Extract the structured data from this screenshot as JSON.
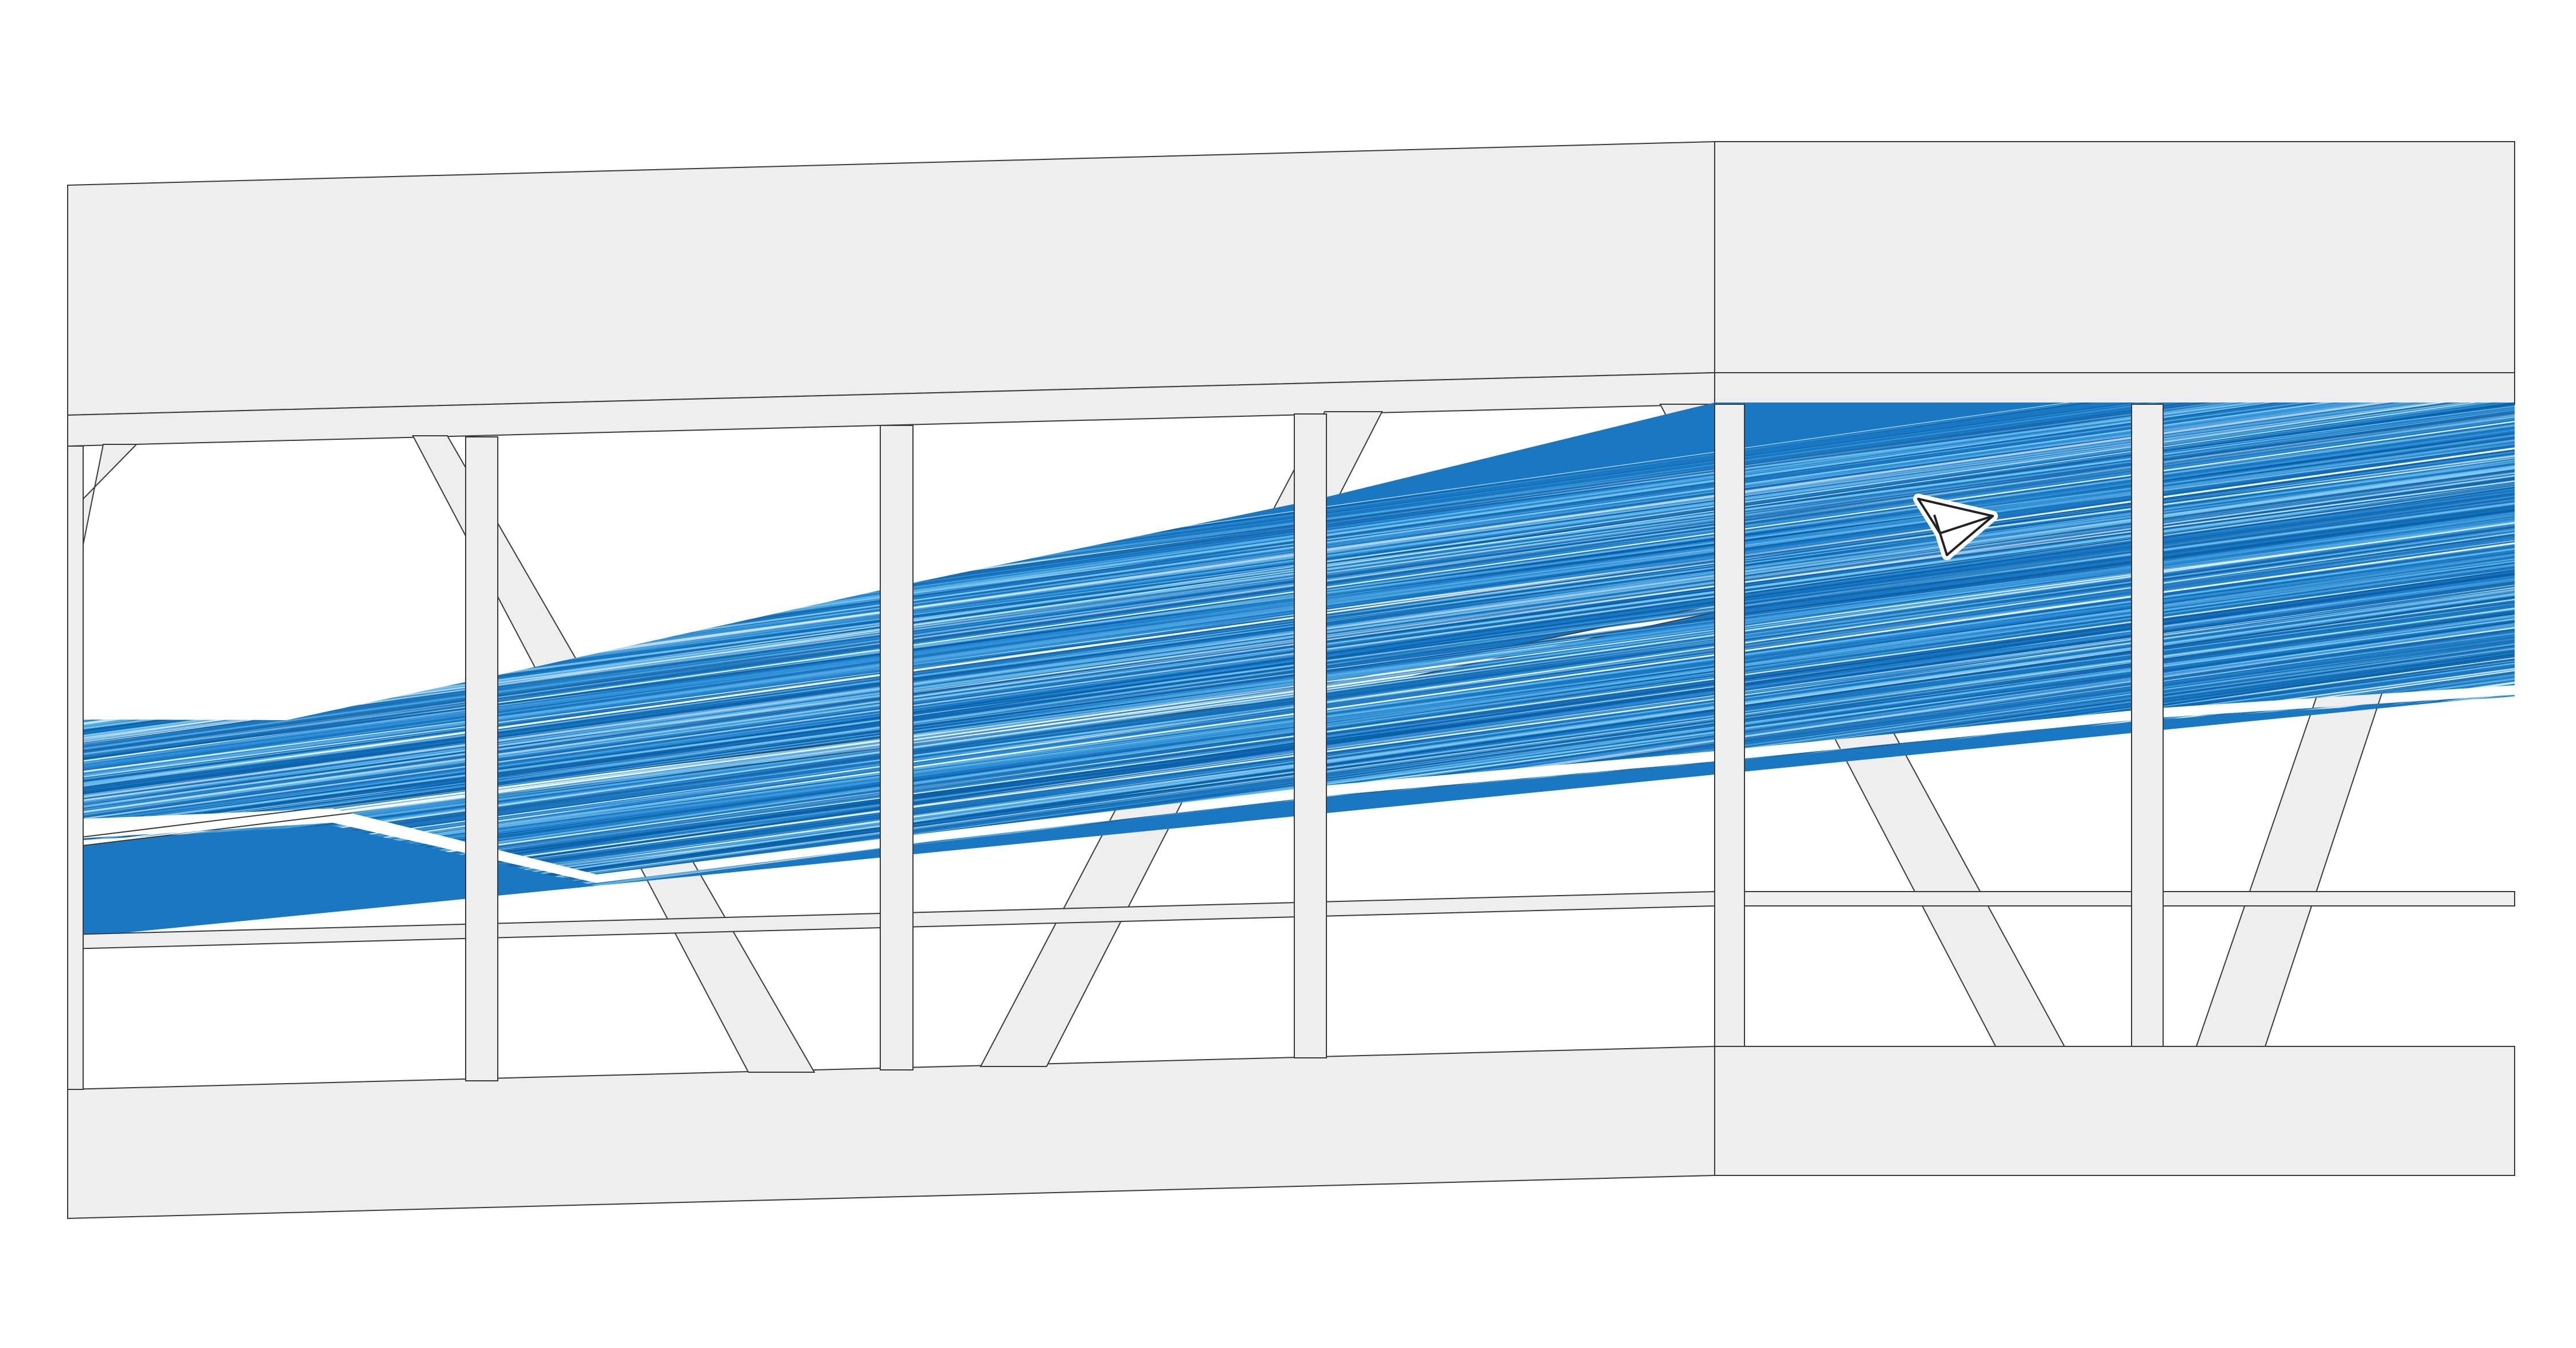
{
  "canvas": {
    "background": "#ffffff"
  },
  "colors": {
    "frame_fill": "#eeeeee",
    "frame_stroke": "#3a3a3a",
    "band_dark": "#0a5fa8",
    "band_mid": "#2f8fd8",
    "band_light": "#7cc8ef",
    "paper_plane_fill": "#ffffff",
    "paper_plane_stroke": "#222222"
  },
  "diagram": {
    "description_icons": [
      "paper-plane-icon"
    ],
    "visible_text": []
  }
}
